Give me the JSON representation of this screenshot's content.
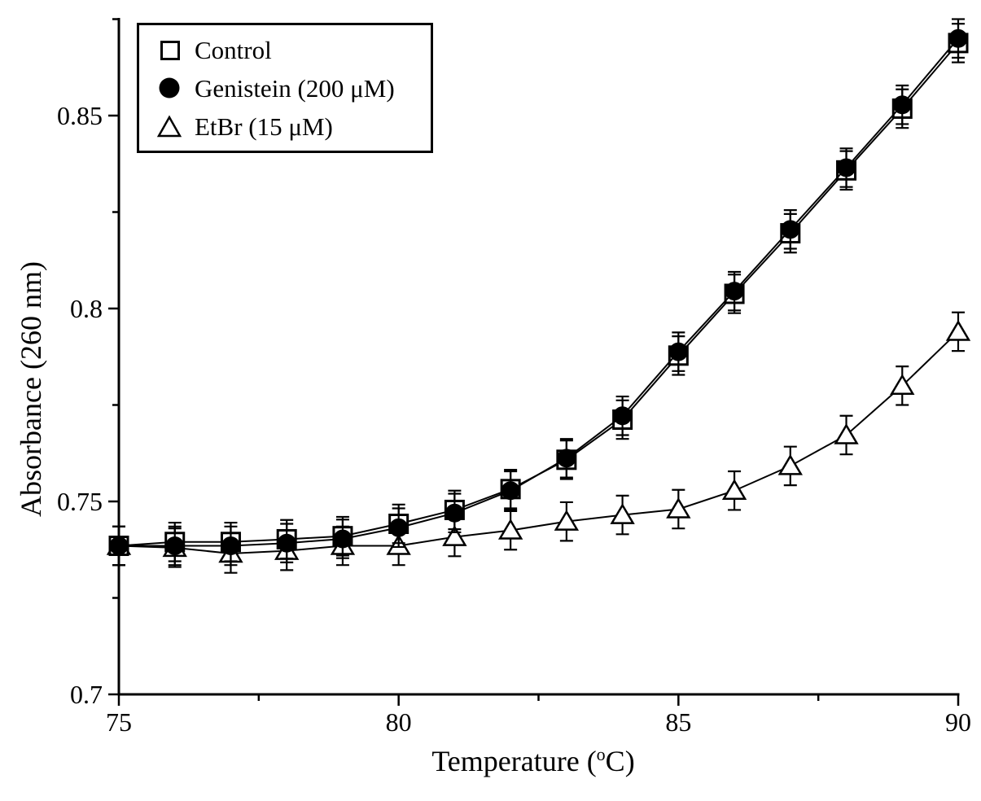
{
  "colors": {
    "ink": "#000000",
    "background": "#ffffff"
  },
  "chart_data": {
    "type": "line",
    "title": "",
    "xlabel": "Temperature (°C)",
    "xlabel_display": {
      "prefix": "Temperature (",
      "superscript": "o",
      "suffix": "C)"
    },
    "ylabel": "Absorbance (260 nm)",
    "xlim": [
      75,
      90
    ],
    "ylim": [
      0.7,
      0.875
    ],
    "x_major_ticks": [
      75,
      80,
      85,
      90
    ],
    "x_major_tick_labels": [
      "75",
      "80",
      "85",
      "90"
    ],
    "x_minor_ticks": [
      77.5,
      82.5,
      87.5
    ],
    "y_major_ticks": [
      0.7,
      0.75,
      0.8,
      0.85
    ],
    "y_major_tick_labels": [
      "0.7",
      "0.75",
      "0.8",
      "0.85"
    ],
    "y_minor_ticks": [
      0.725,
      0.775,
      0.825,
      0.875
    ],
    "grid": false,
    "legend_position": "upper-left",
    "x": [
      75,
      76,
      77,
      78,
      79,
      80,
      81,
      82,
      83,
      84,
      85,
      86,
      87,
      88,
      89,
      90
    ],
    "series": [
      {
        "name": "Control",
        "marker": "open-square",
        "line_style": "solid",
        "error_bar": 0.005,
        "values": [
          0.7385,
          0.7395,
          0.7395,
          0.7402,
          0.741,
          0.7442,
          0.7478,
          0.7532,
          0.7608,
          0.7712,
          0.7878,
          0.8038,
          0.8195,
          0.8358,
          0.8518,
          0.8688
        ]
      },
      {
        "name": "Genistein (200 μM)",
        "marker": "filled-circle",
        "line_style": "solid",
        "error_bar": 0.005,
        "values": [
          0.7385,
          0.7385,
          0.7385,
          0.7392,
          0.7403,
          0.7432,
          0.747,
          0.7528,
          0.7612,
          0.7722,
          0.7888,
          0.8045,
          0.8205,
          0.8365,
          0.8528,
          0.87
        ]
      },
      {
        "name": "EtBr (15 μM)",
        "marker": "open-triangle",
        "line_style": "solid",
        "error_bar": 0.005,
        "values": [
          0.7385,
          0.738,
          0.7365,
          0.7372,
          0.7385,
          0.7385,
          0.7408,
          0.7425,
          0.7448,
          0.7465,
          0.748,
          0.7528,
          0.7592,
          0.7672,
          0.78,
          0.794
        ]
      }
    ]
  }
}
